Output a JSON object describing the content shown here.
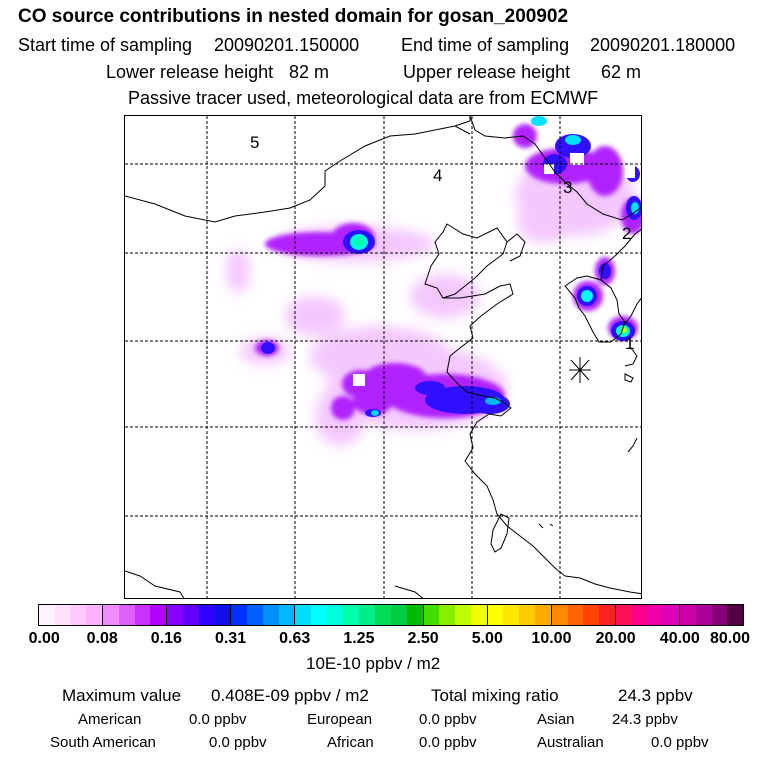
{
  "title": "CO  source contributions in nested domain for gosan_200902",
  "header": {
    "start_label": "Start time of sampling",
    "start_value": "20090201.150000",
    "end_label": "End time of sampling",
    "end_value": "20090201.180000",
    "lower_label": "Lower release height",
    "lower_value": "82 m",
    "upper_label": "Upper release height",
    "upper_value": "62 m",
    "note": "Passive tracer used, meteorological data are from ECMWF"
  },
  "map": {
    "region_labels": [
      "1",
      "2",
      "3",
      "4",
      "5"
    ],
    "station_marker": "receptor-star"
  },
  "colorbar": {
    "ticks": [
      "0.00",
      "0.08",
      "0.16",
      "0.31",
      "0.63",
      "1.25",
      "2.50",
      "5.00",
      "10.00",
      "20.00",
      "40.00",
      "80.00"
    ],
    "units": "10E-10 ppbv / m2",
    "colors": [
      [
        "#fff3ff",
        "#ffe0ff",
        "#ffc9ff",
        "#ffb0ff"
      ],
      [
        "#f08cff",
        "#e060ff",
        "#cc30ff",
        "#b000ff"
      ],
      [
        "#8800ff",
        "#6000ff",
        "#3000ff",
        "#1010ee"
      ],
      [
        "#0030ff",
        "#0060ff",
        "#0090ff",
        "#00b8ff"
      ],
      [
        "#00ddff",
        "#00ffff",
        "#00ffdd",
        "#00ffaa"
      ],
      [
        "#00ee88",
        "#00dd55",
        "#00cc44",
        "#00bb00"
      ],
      [
        "#44dd00",
        "#88ee00",
        "#bbff00",
        "#eeff00"
      ],
      [
        "#ffff00",
        "#ffe800",
        "#ffcc00",
        "#ffaa00"
      ],
      [
        "#ff8800",
        "#ff6600",
        "#ff4400",
        "#ff2222"
      ],
      [
        "#ff1155",
        "#ff0088",
        "#ee00aa",
        "#dd00bb"
      ],
      [
        "#cc00aa",
        "#aa0099",
        "#880077",
        "#550044"
      ]
    ]
  },
  "stats": {
    "max_label": "Maximum value",
    "max_value": "0.408E-09 ppbv / m2",
    "total_label": "Total mixing ratio",
    "total_value": "24.3 ppbv",
    "regions": [
      {
        "name": "American",
        "value": "0.0 ppbv"
      },
      {
        "name": "European",
        "value": "0.0 ppbv"
      },
      {
        "name": "Asian",
        "value": "24.3 ppbv"
      },
      {
        "name": "South American",
        "value": "0.0 ppbv"
      },
      {
        "name": "African",
        "value": "0.0 ppbv"
      },
      {
        "name": "Australian",
        "value": "0.0 ppbv"
      }
    ]
  }
}
